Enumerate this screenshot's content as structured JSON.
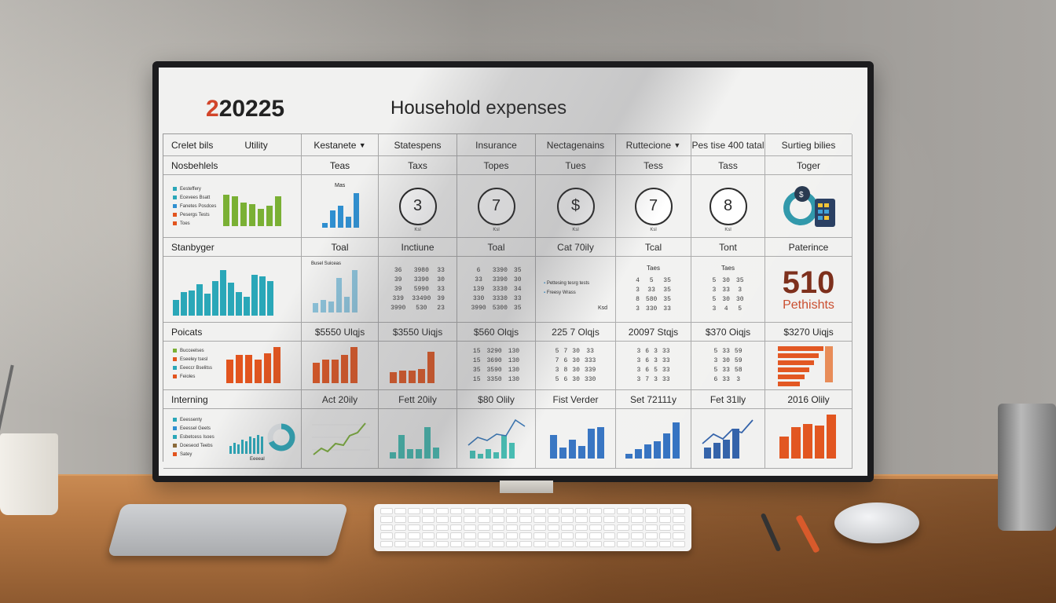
{
  "header": {
    "year_accent": "2",
    "year": "20225",
    "title": "Household expenses"
  },
  "columns": [
    "Crelet bils",
    "Utility",
    "Kestanete",
    "Statespens",
    "Insurance",
    "Nectagenains",
    "Ruttecione",
    "Pes tise 400 tatal",
    "Surtieg bilies"
  ],
  "row1": {
    "label": "Nosbehlels",
    "cells": [
      "Teas",
      "Taxs",
      "Topes",
      "Tues",
      "Tess",
      "Tass",
      "Toger"
    ],
    "mini_title": "Mas",
    "rings": [
      {
        "value": "3",
        "foot": "Ksl"
      },
      {
        "value": "7",
        "foot": "Ksl"
      },
      {
        "value": "$",
        "foot": "Ksl"
      },
      {
        "value": "7",
        "foot": "Ksl"
      },
      {
        "value": "8",
        "foot": "Ksl"
      }
    ],
    "legend": [
      "Eesteffery",
      "Ecevees Bsatt",
      "Fanetes Posdces",
      "Pesergs Tests",
      "Toes"
    ],
    "colors": {
      "green": "#7ab034",
      "blue": "#2f8fd0",
      "orange": "#e2541e",
      "teal": "#2aa7b8"
    }
  },
  "row2": {
    "label": "Stanbyger",
    "cells": [
      "Toal",
      "Inctiune",
      "Toal",
      "Cat 70ily",
      "Tcal",
      "Tont",
      "Paterince"
    ],
    "chart_title": "Busel Suiceas",
    "list_items": [
      "Pettesing tesrg tests",
      "Freesy Wrass"
    ],
    "list_foot": "Ksd",
    "table_head_5": "Taes",
    "table_head_6": "Taes",
    "big_value": "510",
    "big_sub": "Pethishts",
    "numbers_a": [
      [
        "36",
        "39",
        "39",
        "339",
        "3990"
      ],
      [
        "3980",
        "3390",
        "5990",
        "33490",
        "530"
      ],
      [
        "33",
        "30",
        "33",
        "39",
        "23"
      ]
    ],
    "numbers_b": [
      [
        "6",
        "33",
        "139",
        "330",
        "3990"
      ],
      [
        "3390",
        "3390",
        "3330",
        "3330",
        "5300"
      ],
      [
        "35",
        "30",
        "34",
        "33",
        "35"
      ]
    ],
    "numbers_c": [
      [
        "4",
        "3",
        "8",
        "3",
        "8"
      ],
      [
        "5",
        "33",
        "580",
        "330",
        "300"
      ],
      [
        "35",
        "35",
        "35",
        "33",
        "30"
      ]
    ],
    "numbers_d": [
      [
        "5",
        "3",
        "5",
        "3",
        "8"
      ],
      [
        "30",
        "33",
        "30",
        "4",
        "3"
      ],
      [
        "35",
        "3",
        "30",
        "5",
        "33"
      ]
    ]
  },
  "row3": {
    "label": "Poicats",
    "cells": [
      "$5550 Ulqjs",
      "$3550 Uiqjs",
      "$560 Olqjs",
      "225 7 Olqjs",
      "20097 Stqjs",
      "$370 Oiqjs",
      "$3270 Uiqjs"
    ],
    "legend": [
      "Bucceelses",
      "Eseeley tsesl",
      "Eeeccr Bselitss",
      "Feioles"
    ],
    "numbers_a": [
      [
        "15",
        "15",
        "35",
        "15",
        "35"
      ],
      [
        "3290",
        "3690",
        "3590",
        "3350",
        "15450"
      ],
      [
        "130",
        "130",
        "130",
        "130",
        "130"
      ]
    ],
    "numbers_b": [
      [
        "5",
        "7",
        "3",
        "5",
        "7"
      ],
      [
        "7",
        "6",
        "8",
        "6",
        "29"
      ],
      [
        "30",
        "30",
        "30",
        "30",
        "30"
      ],
      [
        "33",
        "333",
        "339",
        "330",
        "30"
      ]
    ],
    "numbers_c": [
      [
        "3",
        "3",
        "3",
        "3",
        "3"
      ],
      [
        "6",
        "6",
        "6",
        "7",
        "30"
      ],
      [
        "3",
        "3",
        "5",
        "3",
        "30"
      ],
      [
        "33",
        "33",
        "33",
        "33",
        "23"
      ]
    ],
    "numbers_d": [
      [
        "5",
        "3",
        "5",
        "6",
        "3"
      ],
      [
        "33",
        "30",
        "33",
        "33",
        "30"
      ],
      [
        "59",
        "59",
        "58",
        "3",
        "39"
      ]
    ]
  },
  "row4": {
    "label": "Interning",
    "cells": [
      "Act 20ily",
      "Fett 20ily",
      "$80 Olily",
      "Fist Verder",
      "Set 72111y",
      "Fet 31lly",
      "2016 Olily"
    ],
    "legend": [
      "Eeessenty",
      "Eeessel Geets",
      "Esbetcess Isoes",
      "Doeseod Teebs",
      "Satey"
    ],
    "gauge_label": "Eeeeal"
  }
}
